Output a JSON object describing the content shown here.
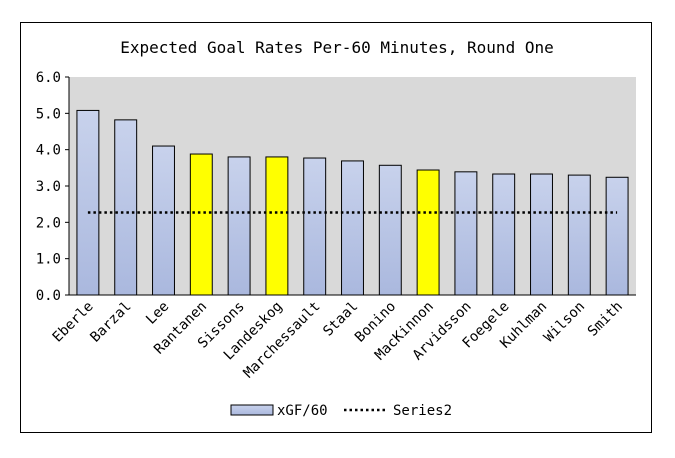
{
  "chart_data": {
    "type": "bar",
    "title": "Expected Goal Rates Per-60 Minutes, Round One",
    "categories": [
      "Eberle",
      "Barzal",
      "Lee",
      "Rantanen",
      "Sissons",
      "Landeskog",
      "Marchessault",
      "Staal",
      "Bonino",
      "MacKinnon",
      "Arvidsson",
      "Foegele",
      "Kuhlman",
      "Wilson",
      "Smith"
    ],
    "series": [
      {
        "name": "xGF/60",
        "type": "bar",
        "values": [
          5.08,
          4.82,
          4.1,
          3.88,
          3.8,
          3.8,
          3.77,
          3.69,
          3.57,
          3.44,
          3.39,
          3.33,
          3.33,
          3.3,
          3.24
        ]
      },
      {
        "name": "Series2",
        "type": "line",
        "style": "dotted",
        "values": [
          2.27,
          2.27,
          2.27,
          2.27,
          2.27,
          2.27,
          2.27,
          2.27,
          2.27,
          2.27,
          2.27,
          2.27,
          2.27,
          2.27,
          2.27
        ]
      }
    ],
    "highlighted": [
      "Rantanen",
      "Landeskog",
      "MacKinnon"
    ],
    "ylim": [
      0,
      6
    ],
    "yticks": [
      "0.0",
      "1.0",
      "2.0",
      "3.0",
      "4.0",
      "5.0",
      "6.0"
    ],
    "grid": false,
    "legend_position": "bottom"
  },
  "colors": {
    "plot_background": "#d9d9d9",
    "bar_fill_top": "#c8d2ec",
    "bar_fill_bottom": "#aab8de",
    "highlight_fill": "#ffff00",
    "bar_stroke": "#000000",
    "line": "#000000"
  }
}
